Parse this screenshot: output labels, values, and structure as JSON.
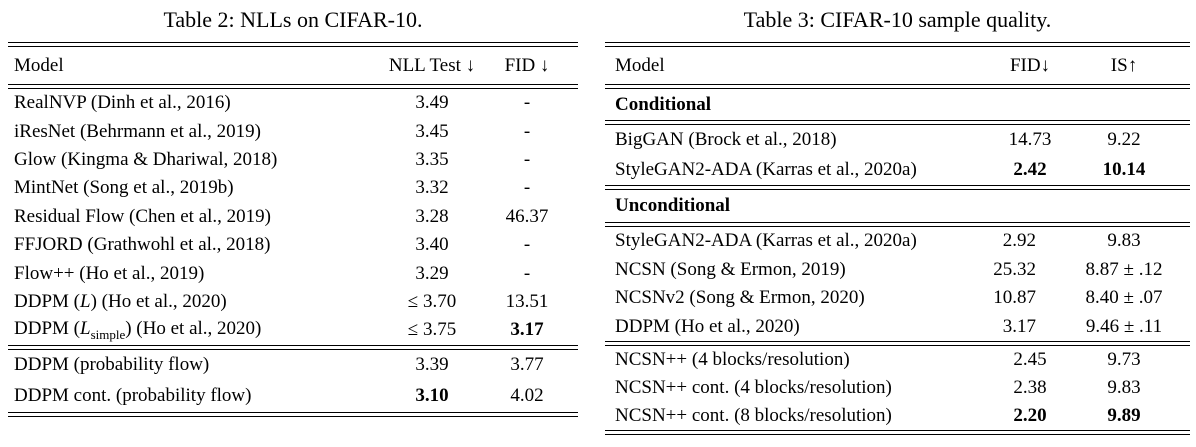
{
  "page": {
    "background": "#ffffff",
    "text_color": "#000000"
  },
  "table2": {
    "title": "Table 2: NLLs on CIFAR-10.",
    "columns": {
      "model": "Model",
      "nll": "NLL Test ↓",
      "fid": "FID ↓"
    },
    "body": [
      {
        "model": "RealNVP (Dinh et al., 2016)",
        "nll": "3.49",
        "fid": "-"
      },
      {
        "model": "iResNet (Behrmann et al., 2019)",
        "nll": "3.45",
        "fid": "-"
      },
      {
        "model": "Glow (Kingma & Dhariwal, 2018)",
        "nll": "3.35",
        "fid": "-"
      },
      {
        "model": "MintNet (Song et al., 2019b)",
        "nll": "3.32",
        "fid": "-"
      },
      {
        "model": "Residual Flow (Chen et al., 2019)",
        "nll": "3.28",
        "fid": "46.37"
      },
      {
        "model": "FFJORD (Grathwohl et al., 2018)",
        "nll": "3.40",
        "fid": "-"
      },
      {
        "model": "Flow++ (Ho et al., 2019)",
        "nll": "3.29",
        "fid": "-"
      },
      {
        "model_pre": "DDPM (",
        "model_var": "L",
        "model_post": ") (Ho et al., 2020)",
        "nll": "≤ 3.70",
        "fid": "13.51"
      },
      {
        "model_pre": "DDPM (",
        "model_var": "L",
        "model_sub": "simple",
        "model_post": ") (Ho et al., 2020)",
        "nll": "≤ 3.75",
        "fid": "3.17"
      }
    ],
    "footer": [
      {
        "model": "DDPM (probability flow)",
        "nll": "3.39",
        "fid": "3.77"
      },
      {
        "model": "DDPM cont. (probability flow)",
        "nll": "3.10",
        "fid": "4.02"
      }
    ]
  },
  "table3": {
    "title": "Table 3: CIFAR-10 sample quality.",
    "columns": {
      "model": "Model",
      "fid": "FID↓",
      "is": "IS↑"
    },
    "section1_label": "Conditional",
    "section2_label": "Unconditional",
    "group1": [
      {
        "model": "BigGAN (Brock et al., 2018)",
        "fid": "14.73",
        "is": "9.22"
      },
      {
        "model": "StyleGAN2-ADA (Karras et al., 2020a)",
        "fid": "2.42",
        "is": "10.14"
      }
    ],
    "group2": [
      {
        "model": "StyleGAN2-ADA (Karras et al., 2020a)",
        "fid": "2.92",
        "is": "9.83"
      },
      {
        "model": "NCSN (Song & Ermon, 2019)",
        "fid": "25.32",
        "is": "8.87 ± .12"
      },
      {
        "model": "NCSNv2 (Song & Ermon, 2020)",
        "fid": "10.87",
        "is": "8.40 ± .07"
      },
      {
        "model": "DDPM (Ho et al., 2020)",
        "fid": "3.17",
        "is": "9.46 ± .11"
      }
    ],
    "group3": [
      {
        "model": "NCSN++ (4 blocks/resolution)",
        "fid": "2.45",
        "is": "9.73"
      },
      {
        "model": "NCSN++ cont. (4 blocks/resolution)",
        "fid": "2.38",
        "is": "9.83"
      },
      {
        "model": "NCSN++ cont. (8 blocks/resolution)",
        "fid": "2.20",
        "is": "9.89"
      }
    ]
  }
}
